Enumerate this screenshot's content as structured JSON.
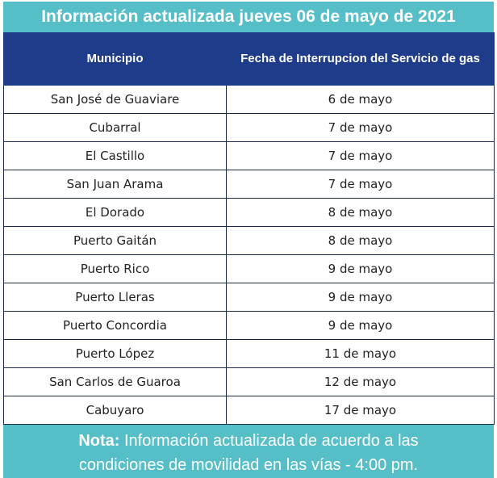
{
  "title": "Información actualizada jueves 06 de mayo de 2021",
  "table": {
    "headers": [
      "Municipio",
      "Fecha de Interrupcion del Servicio de gas"
    ],
    "rows": [
      [
        "San José de Guaviare",
        "6 de mayo"
      ],
      [
        "Cubarral",
        "7 de mayo"
      ],
      [
        "El Castillo",
        "7 de mayo"
      ],
      [
        "San Juan Arama",
        "7 de mayo"
      ],
      [
        "El Dorado",
        "8 de mayo"
      ],
      [
        "Puerto Gaitán",
        "8 de mayo"
      ],
      [
        "Puerto Rico",
        "9 de mayo"
      ],
      [
        "Puerto Lleras",
        "9 de mayo"
      ],
      [
        "Puerto Concordia",
        "9 de mayo"
      ],
      [
        "Puerto López",
        "11 de mayo"
      ],
      [
        "San Carlos de Guaroa",
        "12 de mayo"
      ],
      [
        "Cabuyaro",
        "17 de mayo"
      ]
    ]
  },
  "note": {
    "label": "Nota:",
    "line1": "Información actualizada de acuerdo a las",
    "line2": "condiciones de movilidad en las vías - 4:00 pm."
  },
  "colors": {
    "banner": "#56bec7",
    "header": "#1f3c8a",
    "border": "#1b2a4a"
  }
}
